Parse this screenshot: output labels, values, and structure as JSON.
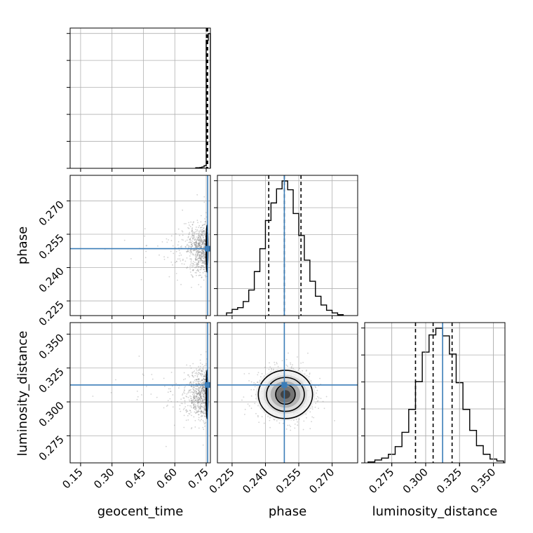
{
  "chart_data": {
    "type": "corner",
    "colors": {
      "truth": "#3b7db8",
      "hist": "#000000",
      "grid": "#b0b0b0",
      "points": "#7f7f7f"
    },
    "variables": [
      {
        "label": "geocent_time",
        "range": [
          0.1,
          0.77
        ],
        "ticks": [
          0.15,
          0.3,
          0.45,
          0.6,
          0.75
        ],
        "tick_labels": [
          "0.15",
          "0.30",
          "0.45",
          "0.60",
          "0.75"
        ]
      },
      {
        "label": "phase",
        "range": [
          0.2184,
          0.2815
        ],
        "ticks": [
          0.225,
          0.24,
          0.255,
          0.27
        ],
        "tick_labels": [
          "0.225",
          "0.240",
          "0.255",
          "0.270"
        ]
      },
      {
        "label": "luminosity_distance",
        "range": [
          0.255,
          0.3585
        ],
        "ticks": [
          0.275,
          0.3,
          0.325,
          0.35
        ],
        "tick_labels": [
          "0.275",
          "0.300",
          "0.325",
          "0.350"
        ]
      }
    ],
    "truths": [
      0.757,
      0.2485,
      0.3125
    ],
    "quantiles": [
      [
        0.751,
        0.754,
        0.757
      ],
      [
        0.2415,
        0.2485,
        0.256
      ],
      [
        0.2925,
        0.3055,
        0.3195
      ]
    ],
    "histograms": [
      {
        "bins": [
          0.7,
          0.71,
          0.72,
          0.73,
          0.74,
          0.75,
          0.76,
          0.77
        ],
        "counts": [
          0.004,
          0.004,
          0.006,
          0.01,
          0.02,
          0.95,
          1.0
        ]
      },
      {
        "bins": [
          0.2225,
          0.225,
          0.2275,
          0.23,
          0.2325,
          0.235,
          0.2375,
          0.24,
          0.2425,
          0.245,
          0.2475,
          0.25,
          0.2525,
          0.255,
          0.2575,
          0.26,
          0.2625,
          0.265,
          0.2675,
          0.27,
          0.2725,
          0.275
        ],
        "counts": [
          3,
          7,
          9,
          16,
          29,
          50,
          76,
          108,
          128,
          144,
          153,
          143,
          116,
          91,
          63,
          39,
          22,
          12,
          6,
          3,
          1
        ]
      },
      {
        "bins": [
          0.2575,
          0.2625,
          0.2675,
          0.2725,
          0.2775,
          0.2825,
          0.2875,
          0.2925,
          0.2975,
          0.3025,
          0.3075,
          0.3125,
          0.3175,
          0.3225,
          0.3275,
          0.3325,
          0.3375,
          0.3425,
          0.3475,
          0.3525,
          0.3575
        ],
        "counts": [
          1,
          3,
          5,
          9,
          17,
          32,
          56,
          85,
          116,
          134,
          141,
          133,
          114,
          84,
          56,
          34,
          18,
          9,
          4,
          2
        ]
      }
    ],
    "contours": {
      "phase_vs_luminosity": {
        "center": [
          0.249,
          0.3055
        ],
        "levels_sigma": [
          [
            0.0044,
            0.0072
          ],
          [
            0.0085,
            0.0125
          ],
          [
            0.0122,
            0.0178
          ]
        ]
      },
      "time_vs_phase": {
        "center": [
          0.754,
          0.2485
        ],
        "levels_sigma": [
          [
            0.002,
            0.004
          ],
          [
            0.0032,
            0.0072
          ],
          [
            0.0045,
            0.0105
          ]
        ]
      },
      "time_vs_luminosity": {
        "center": [
          0.754,
          0.3055
        ],
        "levels_sigma": [
          [
            0.002,
            0.006
          ],
          [
            0.0032,
            0.0125
          ],
          [
            0.0045,
            0.0178
          ]
        ]
      }
    }
  }
}
